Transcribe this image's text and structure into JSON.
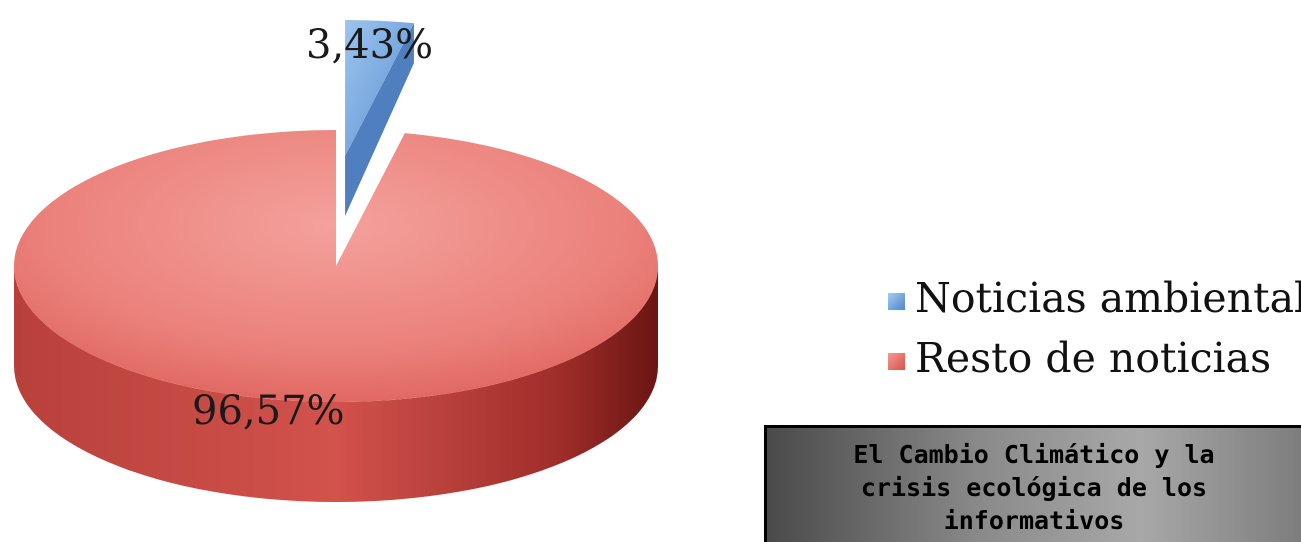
{
  "chart_data": {
    "type": "pie",
    "slices": [
      {
        "name": "Noticias ambientales",
        "value": 3.43,
        "label": "3,43%",
        "color": "#5b9bd5",
        "exploded": true
      },
      {
        "name": "Resto de noticias",
        "value": 96.57,
        "label": "96,57%",
        "color": "#e8706a",
        "exploded": false
      }
    ],
    "legend": {
      "placement": "right",
      "items": [
        "Noticias ambientales",
        "Resto de noticias"
      ],
      "colors": [
        "#5b9bd5",
        "#e8706a"
      ]
    },
    "style": "3d"
  },
  "source_box": {
    "lines": [
      "El Cambio Climático y la",
      "crisis ecológica de los",
      "informativos"
    ]
  }
}
